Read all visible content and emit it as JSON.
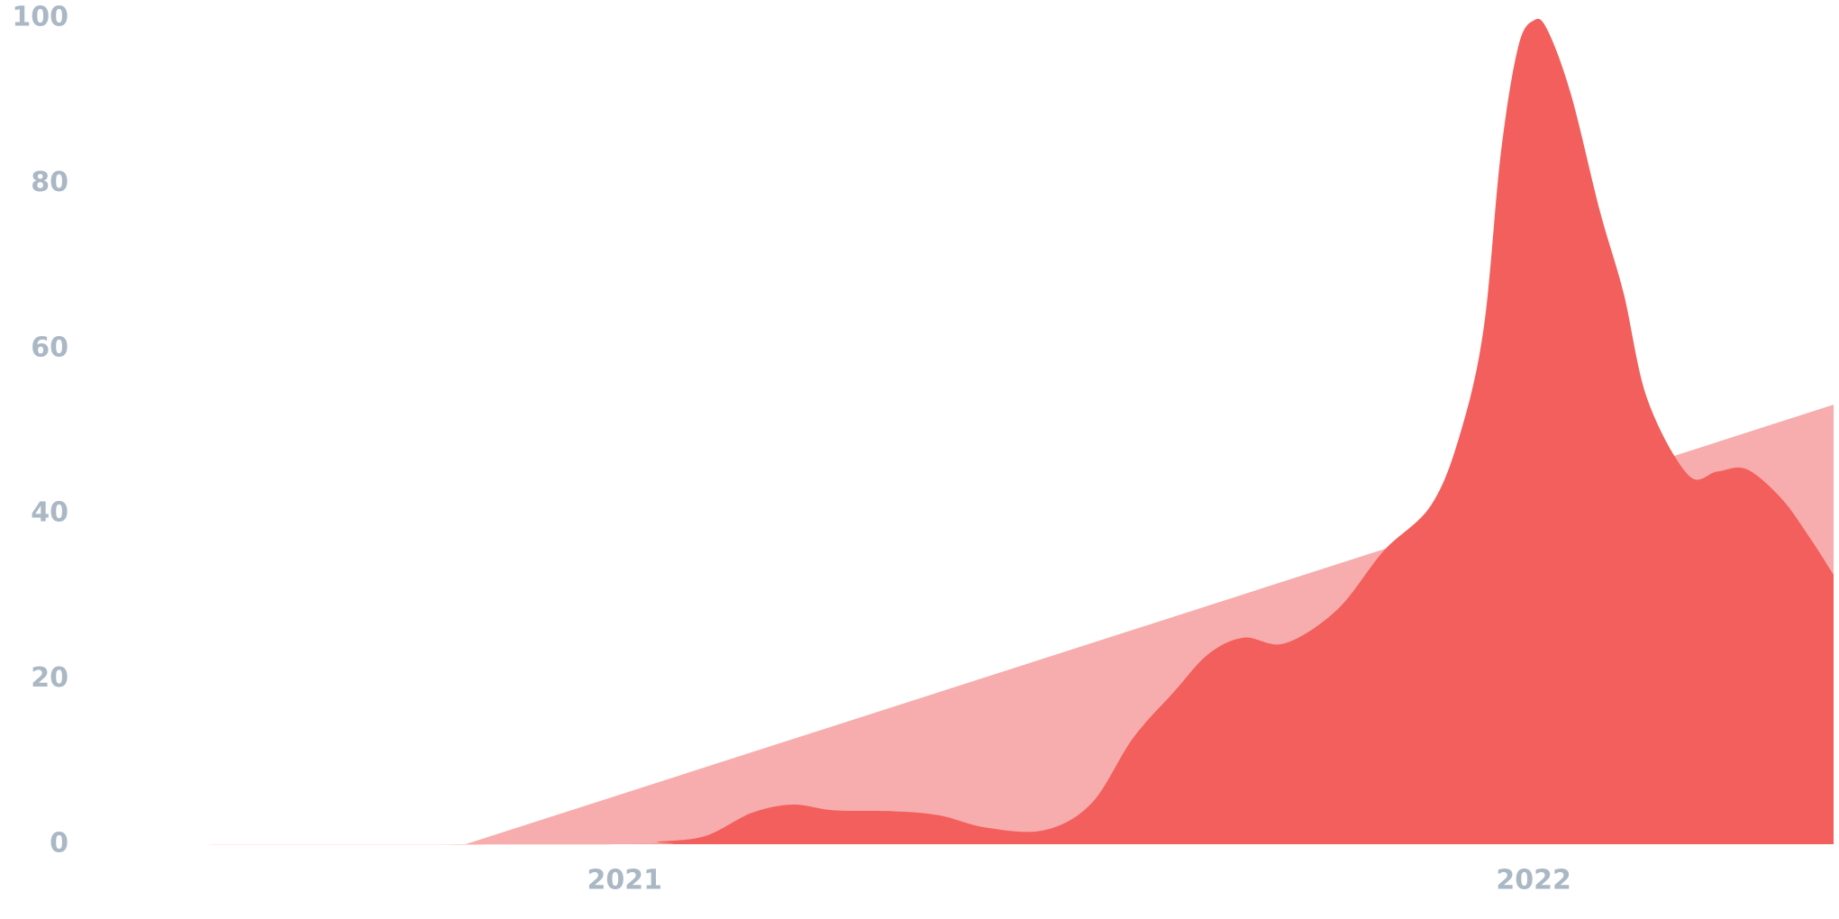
{
  "chart_data": {
    "type": "area",
    "xlim": [
      2020.41,
      2022.33
    ],
    "xticks": [
      2021,
      2022
    ],
    "ylim": [
      0,
      100
    ],
    "yticks": [
      0,
      20,
      40,
      60,
      80,
      100
    ],
    "grid": false,
    "series": [
      {
        "color": "#f7adad",
        "x": [
          2020.41,
          2020.825,
          2022.33
        ],
        "values": [
          0,
          0,
          53.2
        ],
        "smooth": false
      },
      {
        "color": "#f25f5c",
        "x": [
          2020.41,
          2021.0,
          2021.037,
          2021.089,
          2021.14,
          2021.185,
          2021.23,
          2021.295,
          2021.346,
          2021.398,
          2021.462,
          2021.514,
          2021.559,
          2021.604,
          2021.642,
          2021.681,
          2021.726,
          2021.784,
          2021.835,
          2021.887,
          2021.919,
          2021.945,
          2021.964,
          2021.983,
          2022.0,
          2022.015,
          2022.041,
          2022.073,
          2022.099,
          2022.125,
          2022.17,
          2022.202,
          2022.234,
          2022.273,
          2022.305,
          2022.33
        ],
        "values": [
          0,
          0,
          0.3,
          1,
          3.8,
          4.8,
          4.1,
          4,
          3.5,
          2,
          1.7,
          5,
          12.8,
          18.4,
          23,
          25,
          24.3,
          28.4,
          35.5,
          41,
          49.6,
          62.4,
          83.7,
          96.5,
          99.7,
          98.6,
          90.8,
          76.6,
          66.7,
          53.9,
          44.7,
          45.1,
          45.4,
          41.8,
          36.9,
          32.6
        ],
        "smooth": true
      }
    ]
  }
}
